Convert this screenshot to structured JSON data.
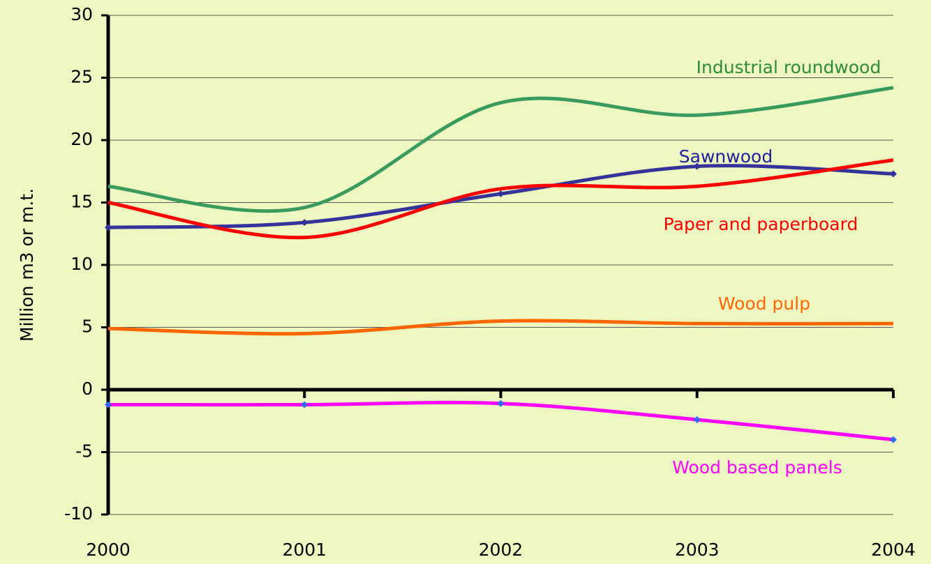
{
  "chart_data": {
    "type": "line",
    "y_label": "Million m3 or m.t.",
    "x": [
      2000,
      2001,
      2002,
      2003,
      2004
    ],
    "xlim": [
      2000,
      2004
    ],
    "xticks": [
      2000,
      2001,
      2002,
      2003,
      2004
    ],
    "ylim": [
      -10,
      30
    ],
    "yticks": [
      -10,
      -5,
      0,
      5,
      10,
      15,
      20,
      25,
      30
    ],
    "grid": true,
    "series": [
      {
        "name": "Industrial roundwood",
        "color": "#3a9b5c",
        "values": [
          16.3,
          14.6,
          23.0,
          22.0,
          24.2
        ]
      },
      {
        "name": "Sawnwood",
        "color": "#333399",
        "values": [
          13.0,
          13.4,
          15.7,
          17.9,
          17.3
        ]
      },
      {
        "name": "Paper and paperboard",
        "color": "#ff0000",
        "values": [
          15.0,
          12.2,
          16.1,
          16.3,
          18.4
        ]
      },
      {
        "name": "Wood pulp",
        "color": "#ff6600",
        "values": [
          4.9,
          4.5,
          5.5,
          5.3,
          5.3
        ]
      },
      {
        "name": "Wood based panels",
        "color": "#ff00ff",
        "values": [
          -1.2,
          -1.2,
          -1.1,
          -2.4,
          -4.0
        ]
      }
    ]
  }
}
